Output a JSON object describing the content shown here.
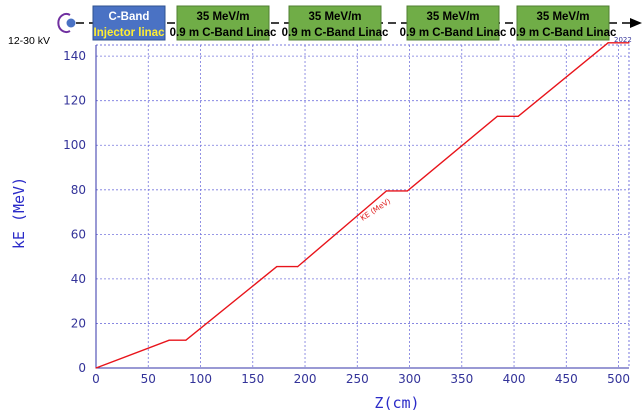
{
  "chart_data": {
    "type": "line",
    "xlabel": "Z(cm)",
    "ylabel": "kE (MeV)",
    "xlim": [
      0,
      510
    ],
    "ylim": [
      0,
      145
    ],
    "xticks": [
      0,
      50,
      100,
      150,
      200,
      250,
      300,
      350,
      400,
      450,
      500
    ],
    "yticks": [
      0,
      20,
      40,
      60,
      80,
      100,
      120,
      140
    ],
    "grid": true,
    "series": [
      {
        "color": "#e8141b",
        "annotation": "KE (MeV)",
        "x": [
          0,
          70,
          86,
          173,
          193,
          278,
          298,
          384,
          404,
          490,
          510
        ],
        "y": [
          0,
          12.5,
          12.5,
          45.5,
          45.5,
          79.5,
          79.5,
          113,
          113,
          146,
          146
        ]
      }
    ],
    "corner_label": "2022"
  },
  "beamline": {
    "source_label": "12-30 kV",
    "injector": {
      "line1": "C-Band",
      "line2": "Injector linac"
    },
    "linacs": [
      {
        "line1": "35 MeV/m",
        "line2": "0.9 m C-Band Linac"
      },
      {
        "line1": "35 MeV/m",
        "line2": "0.9 m C-Band Linac"
      },
      {
        "line1": "35 MeV/m",
        "line2": "0.9 m C-Band Linac"
      },
      {
        "line1": "35 MeV/m",
        "line2": "0.9 m C-Band Linac"
      }
    ]
  },
  "colors": {
    "injector_fill": "#4a72c4",
    "injector_line1": "#ffffff",
    "injector_line2": "#ffee33",
    "linac_fill": "#70ad47",
    "linac_border": "#4f7f30",
    "grid": "#7777dd",
    "curve": "#e8141b",
    "source_arc": "#7030a0"
  }
}
